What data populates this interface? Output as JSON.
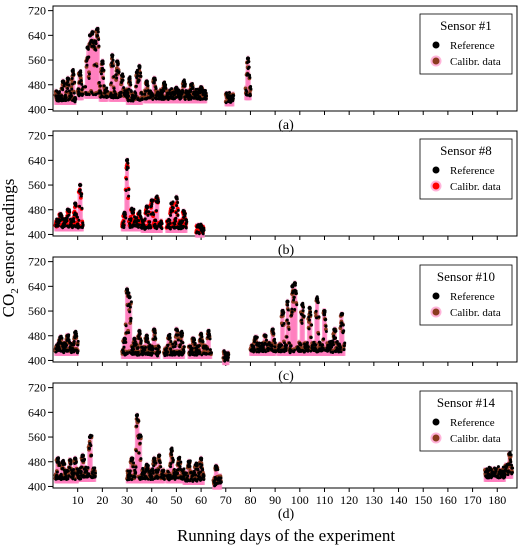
{
  "figure": {
    "ylabel_main": "CO",
    "ylabel_sub": "2",
    "ylabel_rest": " sensor readings",
    "xlabel": "Running days of the experiment"
  },
  "colors": {
    "reference": "#000000",
    "calibrated_sensor1": "#8b3a1e",
    "calibrated_sensor8": "#ff0000",
    "calibrated_sensor10": "#8b3a1e",
    "calibrated_sensor14": "#8b3a1e",
    "band": "#ff80c0"
  },
  "chart_data": [
    {
      "type": "scatter",
      "title": "Sensor #1",
      "panel_label": "(a)",
      "xlim": [
        0,
        188
      ],
      "ylim": [
        395,
        735
      ],
      "yticks": [
        400,
        480,
        560,
        640,
        720
      ],
      "xticks": [
        10,
        20,
        30,
        40,
        50,
        60,
        70,
        80,
        90,
        100,
        110,
        120,
        130,
        140,
        150,
        160,
        170,
        180
      ],
      "x_tick_labels_shown": false,
      "legend": {
        "position": "top-right",
        "entries": [
          "Reference",
          "Calibr. data"
        ]
      },
      "series": [
        {
          "name": "Reference",
          "marker": "dot"
        },
        {
          "name": "Calibr. data",
          "marker": "dot"
        }
      ],
      "segments": [
        {
          "x": [
            1,
            9
          ],
          "base": 430,
          "peaks": [
            [
              4,
              490
            ],
            [
              6,
              500
            ],
            [
              8,
              525
            ]
          ]
        },
        {
          "x": [
            10,
            12
          ],
          "base": 445,
          "peaks": [
            [
              11,
              520
            ]
          ]
        },
        {
          "x": [
            13,
            19
          ],
          "base": 450,
          "peaks": [
            [
              14,
              600
            ],
            [
              15,
              640
            ],
            [
              16,
              650
            ],
            [
              17,
              620
            ],
            [
              18,
              660
            ]
          ]
        },
        {
          "x": [
            19,
            22
          ],
          "base": 440,
          "peaks": [
            [
              20,
              555
            ]
          ]
        },
        {
          "x": [
            23,
            30
          ],
          "base": 440,
          "peaks": [
            [
              24,
              575
            ],
            [
              26,
              555
            ],
            [
              28,
              510
            ]
          ]
        },
        {
          "x": [
            30,
            36
          ],
          "base": 430,
          "peaks": [
            [
              31,
              500
            ],
            [
              34,
              520
            ],
            [
              35,
              540
            ]
          ]
        },
        {
          "x": [
            37,
            62
          ],
          "base": 435,
          "peaks": [
            [
              38,
              490
            ],
            [
              41,
              500
            ],
            [
              45,
              485
            ],
            [
              50,
              470
            ],
            [
              53,
              490
            ],
            [
              56,
              480
            ],
            [
              60,
              470
            ]
          ]
        },
        {
          "x": [
            70,
            73
          ],
          "base": 425,
          "peaks": [
            [
              71,
              440
            ]
          ]
        },
        {
          "x": [
            78,
            80
          ],
          "base": 445,
          "peaks": [
            [
              79,
              565
            ]
          ]
        }
      ]
    },
    {
      "type": "scatter",
      "title": "Sensor #8",
      "panel_label": "(b)",
      "xlim": [
        0,
        188
      ],
      "ylim": [
        395,
        735
      ],
      "yticks": [
        400,
        480,
        560,
        640,
        720
      ],
      "xticks": [
        10,
        20,
        30,
        40,
        50,
        60,
        70,
        80,
        90,
        100,
        110,
        120,
        130,
        140,
        150,
        160,
        170,
        180
      ],
      "x_tick_labels_shown": false,
      "legend": {
        "position": "top-right",
        "entries": [
          "Reference",
          "Calibr. data"
        ]
      },
      "series": [
        {
          "name": "Reference",
          "marker": "dot"
        },
        {
          "name": "Calibr. data",
          "marker": "dot"
        }
      ],
      "segments": [
        {
          "x": [
            1,
            12
          ],
          "base": 425,
          "peaks": [
            [
              3,
              465
            ],
            [
              6,
              480
            ],
            [
              9,
              500
            ],
            [
              11,
              560
            ]
          ]
        },
        {
          "x": [
            28,
            36
          ],
          "base": 425,
          "peaks": [
            [
              29,
              470
            ],
            [
              30,
              640
            ],
            [
              32,
              480
            ],
            [
              35,
              470
            ]
          ]
        },
        {
          "x": [
            36,
            44
          ],
          "base": 420,
          "peaks": [
            [
              38,
              490
            ],
            [
              40,
              510
            ],
            [
              42,
              520
            ]
          ]
        },
        {
          "x": [
            46,
            54
          ],
          "base": 420,
          "peaks": [
            [
              48,
              500
            ],
            [
              50,
              520
            ],
            [
              53,
              475
            ]
          ]
        },
        {
          "x": [
            58,
            61
          ],
          "base": 405,
          "peaks": [
            [
              59,
              430
            ]
          ]
        }
      ]
    },
    {
      "type": "scatter",
      "title": "Sensor #10",
      "panel_label": "(c)",
      "xlim": [
        0,
        188
      ],
      "ylim": [
        395,
        735
      ],
      "yticks": [
        400,
        480,
        560,
        640,
        720
      ],
      "xticks": [
        10,
        20,
        30,
        40,
        50,
        60,
        70,
        80,
        90,
        100,
        110,
        120,
        130,
        140,
        150,
        160,
        170,
        180
      ],
      "x_tick_labels_shown": false,
      "legend": {
        "position": "top-right",
        "entries": [
          "Reference",
          "Calibr. data"
        ]
      },
      "series": [
        {
          "name": "Reference",
          "marker": "dot"
        },
        {
          "name": "Calibr. data",
          "marker": "dot"
        }
      ],
      "segments": [
        {
          "x": [
            1,
            10
          ],
          "base": 430,
          "peaks": [
            [
              3,
              475
            ],
            [
              6,
              480
            ],
            [
              9,
              490
            ]
          ]
        },
        {
          "x": [
            28,
            34
          ],
          "base": 420,
          "peaks": [
            [
              29,
              470
            ],
            [
              30,
              630
            ],
            [
              31,
              605
            ],
            [
              33,
              470
            ]
          ]
        },
        {
          "x": [
            34,
            43
          ],
          "base": 420,
          "peaks": [
            [
              35,
              495
            ],
            [
              38,
              480
            ],
            [
              41,
              500
            ]
          ]
        },
        {
          "x": [
            45,
            53
          ],
          "base": 420,
          "peaks": [
            [
              47,
              480
            ],
            [
              50,
              500
            ],
            [
              52,
              490
            ]
          ]
        },
        {
          "x": [
            55,
            64
          ],
          "base": 420,
          "peaks": [
            [
              57,
              470
            ],
            [
              60,
              485
            ],
            [
              63,
              495
            ]
          ]
        },
        {
          "x": [
            69,
            71
          ],
          "base": 400,
          "peaks": [
            [
              70,
              410
            ]
          ]
        },
        {
          "x": [
            80,
            90
          ],
          "base": 430,
          "peaks": [
            [
              82,
              475
            ],
            [
              86,
              480
            ],
            [
              89,
              500
            ]
          ]
        },
        {
          "x": [
            91,
            106
          ],
          "base": 430,
          "peaks": [
            [
              93,
              560
            ],
            [
              95,
              590
            ],
            [
              97,
              640
            ],
            [
              98,
              650
            ],
            [
              101,
              580
            ],
            [
              104,
              570
            ]
          ]
        },
        {
          "x": [
            106,
            112
          ],
          "base": 430,
          "peaks": [
            [
              107,
              600
            ],
            [
              110,
              560
            ]
          ]
        },
        {
          "x": [
            112,
            118
          ],
          "base": 430,
          "peaks": [
            [
              114,
              500
            ],
            [
              117,
              550
            ]
          ]
        }
      ]
    },
    {
      "type": "scatter",
      "title": "Sensor #14",
      "panel_label": "(d)",
      "xlim": [
        0,
        188
      ],
      "ylim": [
        395,
        735
      ],
      "yticks": [
        400,
        480,
        560,
        640,
        720
      ],
      "xticks": [
        10,
        20,
        30,
        40,
        50,
        60,
        70,
        80,
        90,
        100,
        110,
        120,
        130,
        140,
        150,
        160,
        170,
        180
      ],
      "x_tick_labels_shown": true,
      "legend": {
        "position": "top-right",
        "entries": [
          "Reference",
          "Calibr. data"
        ]
      },
      "series": [
        {
          "name": "Reference",
          "marker": "dot"
        },
        {
          "name": "Calibr. data",
          "marker": "dot"
        }
      ],
      "segments": [
        {
          "x": [
            1,
            10
          ],
          "base": 425,
          "peaks": [
            [
              2,
              490
            ],
            [
              4,
              480
            ],
            [
              7,
              485
            ],
            [
              9,
              490
            ]
          ]
        },
        {
          "x": [
            10,
            17
          ],
          "base": 430,
          "peaks": [
            [
              12,
              500
            ],
            [
              15,
              560
            ]
          ]
        },
        {
          "x": [
            30,
            36
          ],
          "base": 425,
          "peaks": [
            [
              32,
              490
            ],
            [
              34,
              630
            ],
            [
              35,
              565
            ]
          ]
        },
        {
          "x": [
            36,
            45
          ],
          "base": 425,
          "peaks": [
            [
              38,
              470
            ],
            [
              41,
              490
            ],
            [
              43,
              500
            ]
          ]
        },
        {
          "x": [
            46,
            53
          ],
          "base": 425,
          "peaks": [
            [
              48,
              520
            ],
            [
              51,
              490
            ]
          ]
        },
        {
          "x": [
            53,
            61
          ],
          "base": 420,
          "peaks": [
            [
              55,
              480
            ],
            [
              58,
              470
            ],
            [
              60,
              490
            ]
          ]
        },
        {
          "x": [
            65,
            68
          ],
          "base": 405,
          "peaks": [
            [
              66,
              465
            ]
          ]
        },
        {
          "x": [
            175,
            183
          ],
          "base": 430,
          "peaks": [
            [
              178,
              440
            ],
            [
              181,
              445
            ]
          ]
        },
        {
          "x": [
            183,
            186
          ],
          "base": 440,
          "peaks": [
            [
              185,
              505
            ]
          ]
        }
      ]
    }
  ]
}
